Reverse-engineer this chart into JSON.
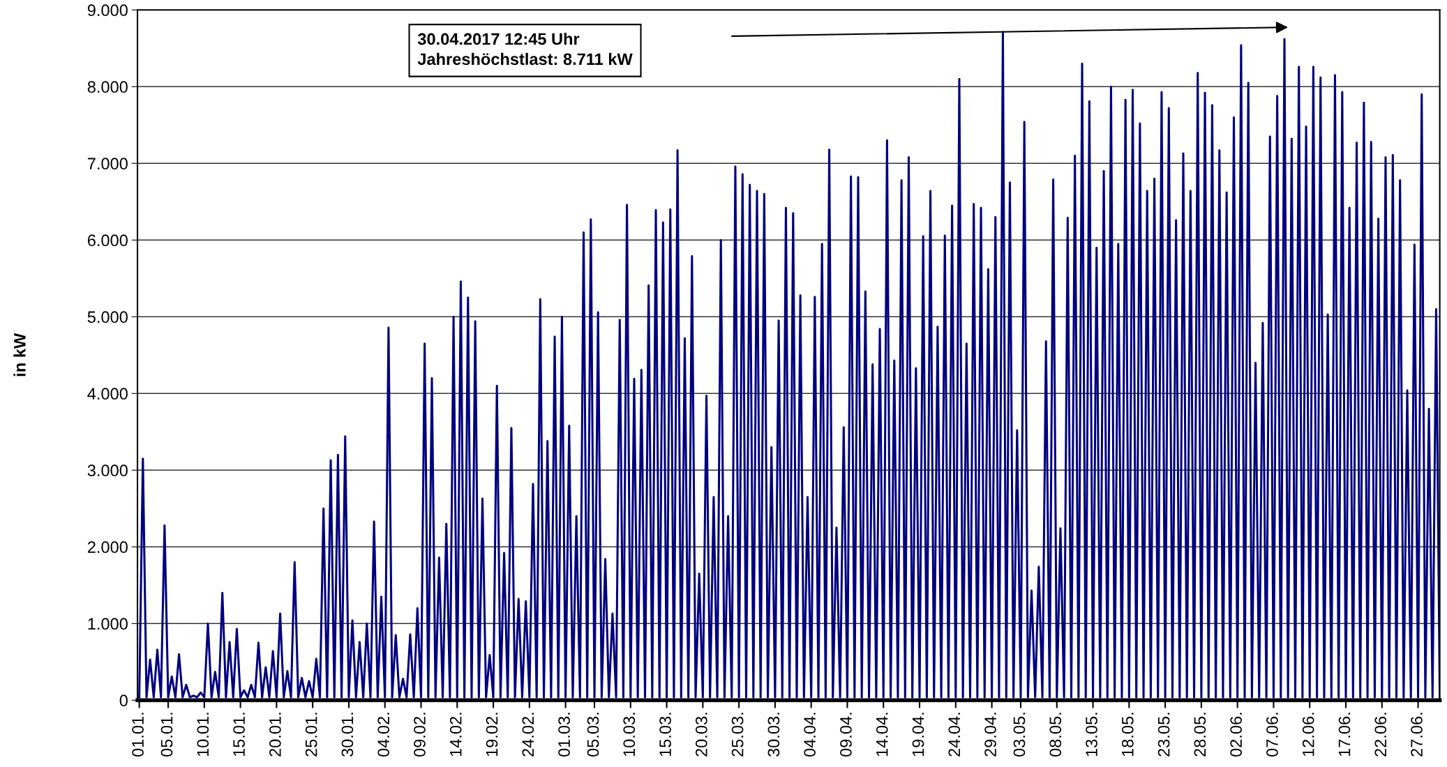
{
  "chart_data": {
    "type": "line",
    "ylabel": "in kW",
    "xlim": [
      "2016-12-31T18:00",
      "2017-06-30"
    ],
    "ylim": [
      0,
      9000
    ],
    "xticks": [
      {
        "value": "2017-01-01",
        "label": "01.01."
      },
      {
        "value": "2017-01-05",
        "label": "05.01."
      },
      {
        "value": "2017-01-10",
        "label": "10.01."
      },
      {
        "value": "2017-01-15",
        "label": "15.01."
      },
      {
        "value": "2017-01-20",
        "label": "20.01."
      },
      {
        "value": "2017-01-25",
        "label": "25.01."
      },
      {
        "value": "2017-01-30",
        "label": "30.01."
      },
      {
        "value": "2017-02-04",
        "label": "04.02."
      },
      {
        "value": "2017-02-09",
        "label": "09.02."
      },
      {
        "value": "2017-02-14",
        "label": "14.02."
      },
      {
        "value": "2017-02-19",
        "label": "19.02."
      },
      {
        "value": "2017-02-24",
        "label": "24.02."
      },
      {
        "value": "2017-03-01",
        "label": "01.03."
      },
      {
        "value": "2017-03-05",
        "label": "05.03."
      },
      {
        "value": "2017-03-10",
        "label": "10.03."
      },
      {
        "value": "2017-03-15",
        "label": "15.03."
      },
      {
        "value": "2017-03-20",
        "label": "20.03."
      },
      {
        "value": "2017-03-25",
        "label": "25.03."
      },
      {
        "value": "2017-03-30",
        "label": "30.03."
      },
      {
        "value": "2017-04-04",
        "label": "04.04."
      },
      {
        "value": "2017-04-09",
        "label": "09.04."
      },
      {
        "value": "2017-04-14",
        "label": "14.04."
      },
      {
        "value": "2017-04-19",
        "label": "19.04."
      },
      {
        "value": "2017-04-24",
        "label": "24.04."
      },
      {
        "value": "2017-04-29",
        "label": "29.04."
      },
      {
        "value": "2017-05-03",
        "label": "03.05."
      },
      {
        "value": "2017-05-08",
        "label": "08.05."
      },
      {
        "value": "2017-05-13",
        "label": "13.05."
      },
      {
        "value": "2017-05-18",
        "label": "18.05."
      },
      {
        "value": "2017-05-23",
        "label": "23.05."
      },
      {
        "value": "2017-05-28",
        "label": "28.05."
      },
      {
        "value": "2017-06-02",
        "label": "02.06."
      },
      {
        "value": "2017-06-07",
        "label": "07.06."
      },
      {
        "value": "2017-06-12",
        "label": "12.06."
      },
      {
        "value": "2017-06-17",
        "label": "17.06."
      },
      {
        "value": "2017-06-22",
        "label": "22.06."
      },
      {
        "value": "2017-06-27",
        "label": "27.06."
      }
    ],
    "yticks": [
      0,
      {
        "value": 1000,
        "label": "1.000"
      },
      {
        "value": 2000,
        "label": "2.000"
      },
      {
        "value": 3000,
        "label": "3.000"
      },
      {
        "value": 4000,
        "label": "4.000"
      },
      {
        "value": 5000,
        "label": "5.000"
      },
      {
        "value": 6000,
        "label": "6.000"
      },
      {
        "value": 7000,
        "label": "7.000"
      },
      {
        "value": 8000,
        "label": "8.000"
      },
      {
        "value": 9000,
        "label": "9.000"
      }
    ],
    "grid": "y",
    "marker": "none",
    "line_style": "solid",
    "annotations": [
      "30.04.2017 12:45 Uhr\nJahreshöchstlast: 8.711 kW"
    ],
    "x": [
      "2017-01-01",
      "2017-01-01T12:00",
      "2017-01-02",
      "2017-01-02T12:00",
      "2017-01-03",
      "2017-01-03T12:00",
      "2017-01-04",
      "2017-01-04T12:00",
      "2017-01-05",
      "2017-01-05T12:00",
      "2017-01-06",
      "2017-01-06T12:00",
      "2017-01-07",
      "2017-01-07T12:00",
      "2017-01-08",
      "2017-01-08T12:00",
      "2017-01-09",
      "2017-01-09T12:00",
      "2017-01-10",
      "2017-01-10T12:00",
      "2017-01-11",
      "2017-01-11T12:00",
      "2017-01-12",
      "2017-01-12T12:00",
      "2017-01-13",
      "2017-01-13T12:00",
      "2017-01-14",
      "2017-01-14T12:00",
      "2017-01-15",
      "2017-01-15T12:00",
      "2017-01-16",
      "2017-01-16T12:00",
      "2017-01-17",
      "2017-01-17T12:00",
      "2017-01-18",
      "2017-01-18T12:00",
      "2017-01-19",
      "2017-01-19T12:00",
      "2017-01-20",
      "2017-01-20T12:00",
      "2017-01-21",
      "2017-01-21T12:00",
      "2017-01-22",
      "2017-01-22T12:00",
      "2017-01-23",
      "2017-01-23T12:00",
      "2017-01-24",
      "2017-01-24T12:00",
      "2017-01-25",
      "2017-01-25T12:00",
      "2017-01-26",
      "2017-01-26T12:00",
      "2017-01-27",
      "2017-01-27T12:00",
      "2017-01-28",
      "2017-01-28T12:00",
      "2017-01-29",
      "2017-01-29T12:00",
      "2017-01-30",
      "2017-01-30T12:00",
      "2017-01-31",
      "2017-01-31T12:00",
      "2017-02-01",
      "2017-02-01T12:00",
      "2017-02-02",
      "2017-02-02T12:00",
      "2017-02-03",
      "2017-02-03T12:00",
      "2017-02-04",
      "2017-02-04T12:00",
      "2017-02-05",
      "2017-02-05T12:00",
      "2017-02-06",
      "2017-02-06T12:00",
      "2017-02-07",
      "2017-02-07T12:00",
      "2017-02-08",
      "2017-02-08T12:00",
      "2017-02-09",
      "2017-02-09T12:00",
      "2017-02-10",
      "2017-02-10T12:00",
      "2017-02-11",
      "2017-02-11T12:00",
      "2017-02-12",
      "2017-02-12T12:00",
      "2017-02-13",
      "2017-02-13T12:00",
      "2017-02-14",
      "2017-02-14T12:00",
      "2017-02-15",
      "2017-02-15T12:00",
      "2017-02-16",
      "2017-02-16T12:00",
      "2017-02-17",
      "2017-02-17T12:00",
      "2017-02-18",
      "2017-02-18T12:00",
      "2017-02-19",
      "2017-02-19T12:00",
      "2017-02-20",
      "2017-02-20T12:00",
      "2017-02-21",
      "2017-02-21T12:00",
      "2017-02-22",
      "2017-02-22T12:00",
      "2017-02-23",
      "2017-02-23T12:00",
      "2017-02-24",
      "2017-02-24T12:00",
      "2017-02-25",
      "2017-02-25T12:00",
      "2017-02-26",
      "2017-02-26T12:00",
      "2017-02-27",
      "2017-02-27T12:00",
      "2017-02-28",
      "2017-02-28T12:00",
      "2017-03-01",
      "2017-03-01T12:00",
      "2017-03-02",
      "2017-03-02T12:00",
      "2017-03-03",
      "2017-03-03T12:00",
      "2017-03-04",
      "2017-03-04T12:00",
      "2017-03-05",
      "2017-03-05T12:00",
      "2017-03-06",
      "2017-03-06T12:00",
      "2017-03-07",
      "2017-03-07T12:00",
      "2017-03-08",
      "2017-03-08T12:00",
      "2017-03-09",
      "2017-03-09T12:00",
      "2017-03-10",
      "2017-03-10T12:00",
      "2017-03-11",
      "2017-03-11T12:00",
      "2017-03-12",
      "2017-03-12T12:00",
      "2017-03-13",
      "2017-03-13T12:00",
      "2017-03-14",
      "2017-03-14T12:00",
      "2017-03-15",
      "2017-03-15T12:00",
      "2017-03-16",
      "2017-03-16T12:00",
      "2017-03-17",
      "2017-03-17T12:00",
      "2017-03-18",
      "2017-03-18T12:00",
      "2017-03-19",
      "2017-03-19T12:00",
      "2017-03-20",
      "2017-03-20T12:00",
      "2017-03-21",
      "2017-03-21T12:00",
      "2017-03-22",
      "2017-03-22T12:00",
      "2017-03-23",
      "2017-03-23T12:00",
      "2017-03-24",
      "2017-03-24T12:00",
      "2017-03-25",
      "2017-03-25T12:00",
      "2017-03-26",
      "2017-03-26T12:00",
      "2017-03-27",
      "2017-03-27T12:00",
      "2017-03-28",
      "2017-03-28T12:00",
      "2017-03-29",
      "2017-03-29T12:00",
      "2017-03-30",
      "2017-03-30T12:00",
      "2017-03-31",
      "2017-03-31T12:00",
      "2017-04-01",
      "2017-04-01T12:00",
      "2017-04-02",
      "2017-04-02T12:00",
      "2017-04-03",
      "2017-04-03T12:00",
      "2017-04-04",
      "2017-04-04T12:00",
      "2017-04-05",
      "2017-04-05T12:00",
      "2017-04-06",
      "2017-04-06T12:00",
      "2017-04-07",
      "2017-04-07T12:00",
      "2017-04-08",
      "2017-04-08T12:00",
      "2017-04-09",
      "2017-04-09T12:00",
      "2017-04-10",
      "2017-04-10T12:00",
      "2017-04-11",
      "2017-04-11T12:00",
      "2017-04-12",
      "2017-04-12T12:00",
      "2017-04-13",
      "2017-04-13T12:00",
      "2017-04-14",
      "2017-04-14T12:00",
      "2017-04-15",
      "2017-04-15T12:00",
      "2017-04-16",
      "2017-04-16T12:00",
      "2017-04-17",
      "2017-04-17T12:00",
      "2017-04-18",
      "2017-04-18T12:00",
      "2017-04-19",
      "2017-04-19T12:00",
      "2017-04-20",
      "2017-04-20T12:00",
      "2017-04-21",
      "2017-04-21T12:00",
      "2017-04-22",
      "2017-04-22T12:00",
      "2017-04-23",
      "2017-04-23T12:00",
      "2017-04-24",
      "2017-04-24T12:00",
      "2017-04-25",
      "2017-04-25T12:00",
      "2017-04-26",
      "2017-04-26T12:00",
      "2017-04-27",
      "2017-04-27T12:00",
      "2017-04-28",
      "2017-04-28T12:00",
      "2017-04-29",
      "2017-04-29T12:00",
      "2017-04-30",
      "2017-04-30T12:45",
      "2017-05-01",
      "2017-05-01T12:00",
      "2017-05-02",
      "2017-05-02T12:00",
      "2017-05-03",
      "2017-05-03T12:00",
      "2017-05-04",
      "2017-05-04T12:00",
      "2017-05-05",
      "2017-05-05T12:00",
      "2017-05-06",
      "2017-05-06T12:00",
      "2017-05-07",
      "2017-05-07T12:00",
      "2017-05-08",
      "2017-05-08T12:00",
      "2017-05-09",
      "2017-05-09T12:00",
      "2017-05-10",
      "2017-05-10T12:00",
      "2017-05-11",
      "2017-05-11T12:00",
      "2017-05-12",
      "2017-05-12T12:00",
      "2017-05-13",
      "2017-05-13T12:00",
      "2017-05-14",
      "2017-05-14T12:00",
      "2017-05-15",
      "2017-05-15T12:00",
      "2017-05-16",
      "2017-05-16T12:00",
      "2017-05-17",
      "2017-05-17T12:00",
      "2017-05-18",
      "2017-05-18T12:00",
      "2017-05-19",
      "2017-05-19T12:00",
      "2017-05-20",
      "2017-05-20T12:00",
      "2017-05-21",
      "2017-05-21T12:00",
      "2017-05-22",
      "2017-05-22T12:00",
      "2017-05-23",
      "2017-05-23T12:00",
      "2017-05-24",
      "2017-05-24T12:00",
      "2017-05-25",
      "2017-05-25T12:00",
      "2017-05-26",
      "2017-05-26T12:00",
      "2017-05-27",
      "2017-05-27T12:00",
      "2017-05-28",
      "2017-05-28T12:00",
      "2017-05-29",
      "2017-05-29T12:00",
      "2017-05-30",
      "2017-05-30T12:00",
      "2017-05-31",
      "2017-05-31T12:00",
      "2017-06-01",
      "2017-06-01T12:00",
      "2017-06-02",
      "2017-06-02T12:00",
      "2017-06-03",
      "2017-06-03T12:00",
      "2017-06-04",
      "2017-06-04T12:00",
      "2017-06-05",
      "2017-06-05T12:00",
      "2017-06-06",
      "2017-06-06T12:00",
      "2017-06-07",
      "2017-06-07T12:00",
      "2017-06-08",
      "2017-06-08T12:00",
      "2017-06-09",
      "2017-06-09T12:00",
      "2017-06-10",
      "2017-06-10T12:00",
      "2017-06-11",
      "2017-06-11T12:00",
      "2017-06-12",
      "2017-06-12T12:00",
      "2017-06-13",
      "2017-06-13T12:00",
      "2017-06-14",
      "2017-06-14T12:00",
      "2017-06-15",
      "2017-06-15T12:00",
      "2017-06-16",
      "2017-06-16T12:00",
      "2017-06-17",
      "2017-06-17T12:00",
      "2017-06-18",
      "2017-06-18T12:00",
      "2017-06-19",
      "2017-06-19T12:00",
      "2017-06-20",
      "2017-06-20T12:00",
      "2017-06-21",
      "2017-06-21T12:00",
      "2017-06-22",
      "2017-06-22T12:00",
      "2017-06-23",
      "2017-06-23T12:00",
      "2017-06-24",
      "2017-06-24T12:00",
      "2017-06-25",
      "2017-06-25T12:00",
      "2017-06-26",
      "2017-06-26T12:00",
      "2017-06-27",
      "2017-06-27T12:00",
      "2017-06-28",
      "2017-06-28T12:00",
      "2017-06-29",
      "2017-06-29T12:00",
      "2017-06-30"
    ],
    "series": [
      {
        "color": "#000080",
        "values": [
          40,
          3150,
          40,
          530,
          40,
          660,
          40,
          2280,
          40,
          310,
          40,
          600,
          40,
          200,
          40,
          60,
          40,
          100,
          40,
          1000,
          40,
          370,
          40,
          1400,
          40,
          760,
          40,
          930,
          40,
          130,
          40,
          200,
          40,
          750,
          40,
          430,
          40,
          640,
          40,
          1130,
          40,
          380,
          40,
          1800,
          40,
          290,
          40,
          250,
          40,
          540,
          40,
          2500,
          40,
          3130,
          40,
          3200,
          40,
          3440,
          40,
          1040,
          40,
          760,
          40,
          1000,
          40,
          2330,
          40,
          1350,
          40,
          4860,
          40,
          850,
          40,
          280,
          40,
          860,
          40,
          1200,
          40,
          4650,
          40,
          4200,
          40,
          1860,
          40,
          2300,
          40,
          5000,
          40,
          5460,
          40,
          5250,
          40,
          4940,
          40,
          2630,
          40,
          590,
          40,
          4100,
          40,
          1920,
          40,
          3550,
          40,
          1320,
          40,
          1290,
          40,
          2820,
          40,
          5230,
          40,
          3380,
          40,
          4740,
          40,
          5000,
          40,
          3580,
          40,
          2400,
          40,
          6100,
          40,
          6270,
          40,
          5060,
          40,
          1840,
          40,
          1130,
          40,
          4960,
          40,
          6460,
          40,
          4190,
          40,
          4310,
          40,
          5410,
          40,
          6390,
          40,
          6230,
          40,
          6400,
          40,
          7170,
          40,
          4720,
          40,
          5790,
          40,
          1650,
          40,
          3970,
          40,
          2650,
          40,
          6000,
          40,
          2400,
          40,
          6960,
          40,
          6860,
          40,
          6720,
          40,
          6640,
          40,
          6600,
          40,
          3300,
          40,
          4950,
          40,
          6420,
          40,
          6350,
          40,
          5280,
          40,
          2650,
          40,
          5260,
          40,
          5950,
          40,
          7180,
          40,
          2250,
          40,
          3560,
          40,
          6830,
          40,
          6820,
          40,
          5330,
          40,
          4380,
          40,
          4840,
          40,
          7300,
          40,
          4430,
          40,
          6780,
          40,
          7080,
          40,
          4330,
          40,
          6050,
          40,
          6640,
          40,
          4870,
          40,
          6060,
          40,
          6450,
          40,
          8100,
          40,
          4650,
          40,
          6470,
          40,
          6420,
          40,
          5620,
          40,
          6300,
          40,
          8711,
          40,
          6750,
          40,
          3520,
          40,
          7540,
          40,
          1430,
          40,
          1740,
          40,
          4680,
          40,
          6790,
          40,
          2240,
          40,
          6290,
          40,
          7100,
          40,
          8300,
          40,
          7810,
          40,
          5900,
          40,
          6900,
          40,
          8000,
          40,
          5950,
          40,
          7830,
          40,
          7960,
          40,
          7520,
          40,
          6640,
          40,
          6800,
          40,
          7930,
          40,
          7720,
          40,
          6260,
          40,
          7130,
          40,
          6640,
          40,
          8180,
          40,
          7920,
          40,
          7760,
          40,
          7170,
          40,
          6620,
          40,
          7600,
          40,
          8540,
          40,
          8050,
          40,
          4400,
          40,
          4920,
          40,
          7350,
          40,
          7880,
          40,
          8620,
          40,
          7320,
          40,
          8260,
          40,
          7480,
          40,
          8260,
          40,
          8120,
          40,
          5030,
          40,
          8150,
          40,
          7930,
          40,
          6420,
          40,
          7270,
          40,
          7790,
          40,
          7280,
          40,
          6280,
          40,
          7080,
          40,
          7110,
          40,
          6780,
          40,
          4040,
          40,
          5940,
          40,
          7900,
          40,
          3800,
          40,
          5100,
          40
        ]
      }
    ]
  }
}
